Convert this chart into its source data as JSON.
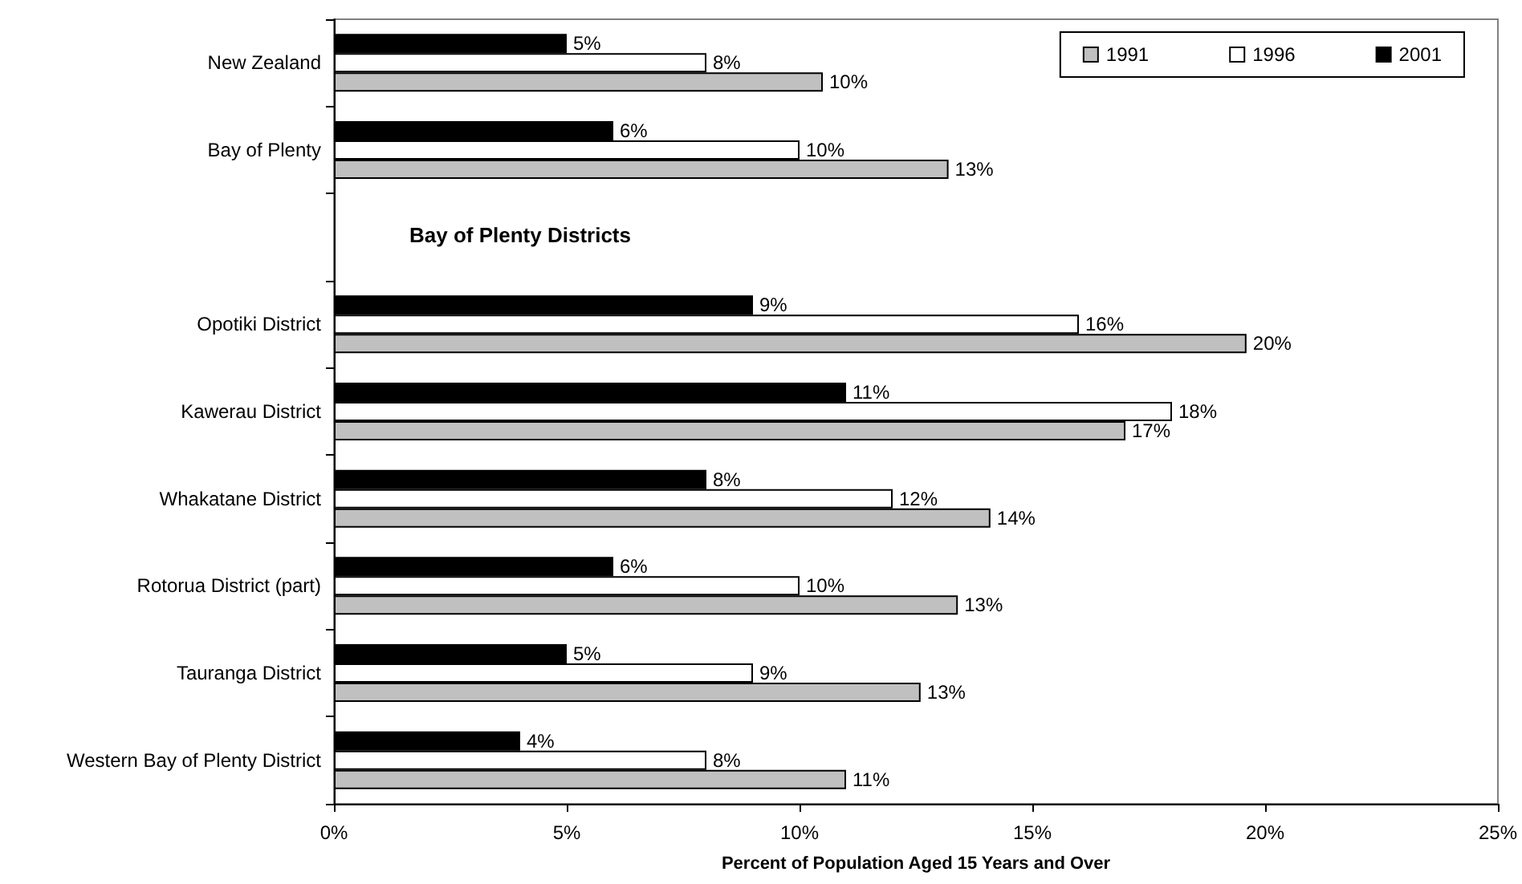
{
  "chart_data": {
    "type": "bar",
    "orientation": "horizontal",
    "xlabel": "Percent of Population Aged 15 Years and Over",
    "categories": [
      "New Zealand",
      "Bay of Plenty",
      null,
      "Opotiki District",
      "Kawerau District",
      "Whakatane District",
      "Rotorua District (part)",
      "Tauranga District",
      "Western Bay of Plenty District"
    ],
    "series": [
      {
        "name": "1991",
        "color": "#c0c0c0",
        "values": [
          10.5,
          13.2,
          null,
          19.6,
          17.0,
          14.1,
          13.4,
          12.6,
          11.0
        ],
        "value_labels": [
          "10%",
          "13%",
          null,
          "20%",
          "17%",
          "14%",
          "13%",
          "13%",
          "11%"
        ]
      },
      {
        "name": "1996",
        "color": "#ffffff",
        "values": [
          8.0,
          10.0,
          null,
          16.0,
          18.0,
          12.0,
          10.0,
          9.0,
          8.0
        ],
        "value_labels": [
          "8%",
          "10%",
          null,
          "16%",
          "18%",
          "12%",
          "10%",
          "9%",
          "8%"
        ]
      },
      {
        "name": "2001",
        "color": "#000000",
        "values": [
          5.0,
          6.0,
          null,
          9.0,
          11.0,
          8.0,
          6.0,
          5.0,
          4.0
        ],
        "value_labels": [
          "5%",
          "6%",
          null,
          "9%",
          "11%",
          "8%",
          "6%",
          "5%",
          "4%"
        ]
      }
    ],
    "annotations": [
      "Bay of Plenty Districts"
    ],
    "xlim": [
      0,
      25
    ],
    "xticks": [
      {
        "value": 0,
        "label": "0%"
      },
      {
        "value": 5,
        "label": "5%"
      },
      {
        "value": 10,
        "label": "10%"
      },
      {
        "value": 15,
        "label": "15%"
      },
      {
        "value": 20,
        "label": "20%"
      },
      {
        "value": 25,
        "label": "25%"
      }
    ],
    "grid": false,
    "legend": "top right"
  }
}
